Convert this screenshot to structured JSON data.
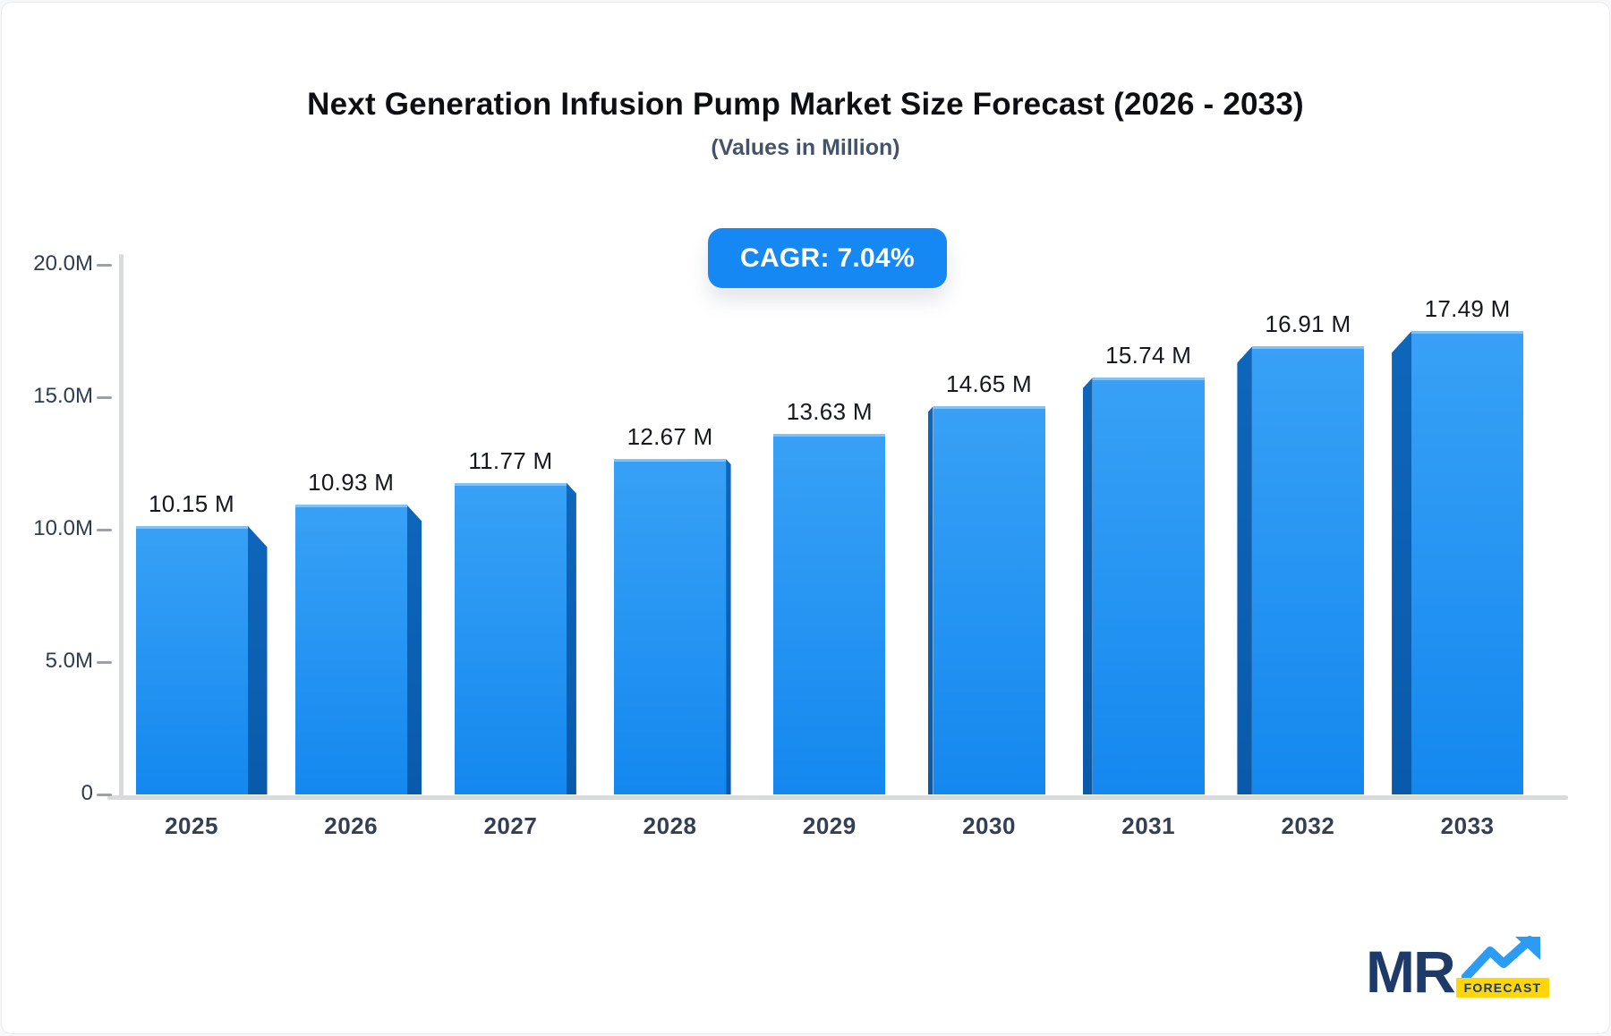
{
  "header": {
    "title": "Next Generation Infusion Pump Market Size Forecast (2026 - 2033)",
    "subtitle": "(Values in Million)",
    "cagr_badge": "CAGR: 7.04%"
  },
  "chart_data": {
    "type": "bar",
    "title": "Next Generation Infusion Pump Market Size Forecast (2026 - 2033)",
    "subtitle": "(Values in Million)",
    "categories": [
      "2025",
      "2026",
      "2027",
      "2028",
      "2029",
      "2030",
      "2031",
      "2032",
      "2033"
    ],
    "values": [
      10.15,
      10.93,
      11.77,
      12.67,
      13.63,
      14.65,
      15.74,
      16.91,
      17.49
    ],
    "value_labels": [
      "10.15 M",
      "10.93 M",
      "11.77 M",
      "12.67 M",
      "13.63 M",
      "14.65 M",
      "15.74 M",
      "16.91 M",
      "17.49 M"
    ],
    "y_tick_labels": [
      "20.0M",
      "15.0M",
      "10.0M",
      "5.0M",
      "0"
    ],
    "y_tick_values": [
      20,
      15,
      10,
      5,
      0
    ],
    "ylim": [
      0,
      20
    ],
    "xlabel": "",
    "ylabel": "",
    "grid": false,
    "legend": false,
    "style": "3d-perspective-bars",
    "colors": {
      "bar_face_top": "#38a1f6",
      "bar_face_bottom": "#1488ef",
      "bar_side_top": "#0e66ba",
      "bar_side_bottom": "#0a5aab",
      "badge_bg": "#1688f3",
      "axis": "#d8dade",
      "tick": "#9aa1ab"
    }
  },
  "logo": {
    "mr": "MR",
    "forecast": "FORECAST",
    "colors": {
      "text": "#1d3a68",
      "arrow": "#2b9bf4",
      "tag_bg": "#ffd60a"
    }
  }
}
